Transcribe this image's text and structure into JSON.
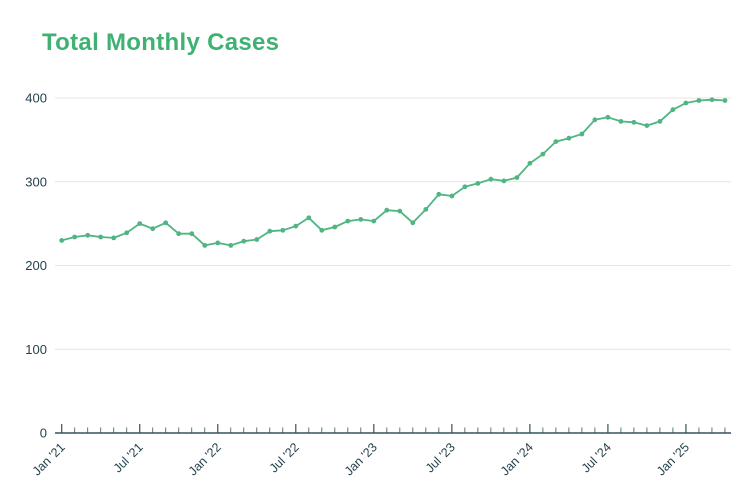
{
  "title": {
    "text": "Total Monthly Cases"
  },
  "colors": {
    "background": "#FFFFFF",
    "title_green": "#3FB273",
    "line_green": "#4FB581",
    "axis_dark": "#33545B",
    "label_dark": "#26424C",
    "gridline_gray": "#E4E4E4"
  },
  "chart_data": {
    "type": "line",
    "title": "Total Monthly Cases",
    "xlabel": "",
    "ylabel": "",
    "legend_position": "none",
    "grid": "horizontal",
    "marker": "circle",
    "ylim": [
      0,
      425
    ],
    "y_ticks": [
      0,
      100,
      200,
      300,
      400
    ],
    "x_tick_labels": [
      "Jan '21",
      "Jul '21",
      "Jan '22",
      "Jul '22",
      "Jan '23",
      "Jul '23",
      "Jan '24",
      "Jul '24",
      "Jan '25"
    ],
    "x_tick_every_months": 6,
    "x": [
      "2021-01",
      "2021-02",
      "2021-03",
      "2021-04",
      "2021-05",
      "2021-06",
      "2021-07",
      "2021-08",
      "2021-09",
      "2021-10",
      "2021-11",
      "2021-12",
      "2022-01",
      "2022-02",
      "2022-03",
      "2022-04",
      "2022-05",
      "2022-06",
      "2022-07",
      "2022-08",
      "2022-09",
      "2022-10",
      "2022-11",
      "2022-12",
      "2023-01",
      "2023-02",
      "2023-03",
      "2023-04",
      "2023-05",
      "2023-06",
      "2023-07",
      "2023-08",
      "2023-09",
      "2023-10",
      "2023-11",
      "2023-12",
      "2024-01",
      "2024-02",
      "2024-03",
      "2024-04",
      "2024-05",
      "2024-06",
      "2024-07",
      "2024-08",
      "2024-09",
      "2024-10",
      "2024-11",
      "2024-12",
      "2025-01",
      "2025-02",
      "2025-03",
      "2025-04"
    ],
    "series": [
      {
        "name": "Total Monthly Cases",
        "values": [
          230,
          234,
          236,
          234,
          233,
          239,
          250,
          244,
          251,
          238,
          238,
          224,
          227,
          224,
          229,
          231,
          241,
          242,
          247,
          257,
          242,
          246,
          253,
          255,
          253,
          266,
          265,
          251,
          267,
          285,
          283,
          294,
          298,
          303,
          301,
          305,
          322,
          333,
          348,
          352,
          357,
          374,
          377,
          372,
          371,
          367,
          372,
          386,
          394,
          397,
          398,
          397
        ]
      }
    ]
  }
}
